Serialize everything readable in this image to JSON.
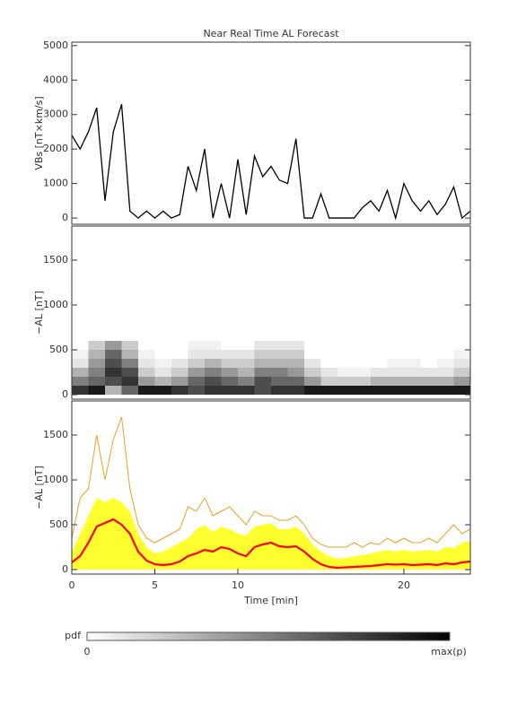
{
  "chart_data": [
    {
      "type": "line",
      "title": "Near Real Time AL Forecast",
      "ylabel": "VBs [nT×km/s]",
      "color": "#000000",
      "x": [
        0,
        0.5,
        1,
        1.5,
        2,
        2.5,
        3,
        3.5,
        4,
        4.5,
        5,
        5.5,
        6,
        6.5,
        7,
        7.5,
        8,
        8.5,
        9,
        9.5,
        10,
        10.5,
        11,
        11.5,
        12,
        12.5,
        13,
        13.5,
        14,
        14.5,
        15,
        15.5,
        16,
        16.5,
        17,
        17.5,
        18,
        18.5,
        19,
        19.5,
        20,
        20.5,
        21,
        21.5,
        22,
        22.5,
        23,
        23.5,
        24
      ],
      "values": [
        2400,
        2000,
        2500,
        3200,
        500,
        2500,
        3300,
        200,
        0,
        200,
        0,
        200,
        0,
        100,
        1500,
        800,
        2000,
        0,
        1000,
        0,
        1700,
        100,
        1800,
        1200,
        1500,
        1100,
        1000,
        2300,
        0,
        0,
        700,
        0,
        0,
        0,
        0,
        300,
        500,
        200,
        800,
        0,
        1000,
        500,
        200,
        500,
        100,
        400,
        900,
        0,
        200
      ],
      "xlim": [
        0,
        24
      ],
      "ylim": [
        -180,
        5100
      ],
      "yticks": [
        0,
        1000,
        2000,
        3000,
        4000,
        5000
      ]
    },
    {
      "type": "heatmap",
      "ylabel": "−AL [nT]",
      "xlim": [
        0,
        24
      ],
      "ylim": [
        -50,
        1880
      ],
      "yticks": [
        0,
        500,
        1000,
        1500
      ],
      "xbins": [
        0,
        1,
        2,
        3,
        4,
        5,
        6,
        7,
        8,
        9,
        10,
        11,
        12,
        13,
        14,
        15,
        16,
        17,
        18,
        19,
        20,
        21,
        22,
        23,
        24
      ],
      "ybins": [
        0,
        100,
        200,
        300,
        400,
        500,
        600
      ],
      "z": [
        [
          0.8,
          0.5,
          0.3,
          0.1,
          0.05,
          0
        ],
        [
          0.9,
          0.6,
          0.5,
          0.4,
          0.3,
          0.2
        ],
        [
          0.3,
          0.7,
          0.8,
          0.7,
          0.6,
          0.4
        ],
        [
          0.6,
          0.8,
          0.7,
          0.5,
          0.3,
          0.2
        ],
        [
          0.9,
          0.4,
          0.2,
          0.1,
          0.05,
          0
        ],
        [
          0.9,
          0.3,
          0.1,
          0.05,
          0,
          0
        ],
        [
          0.8,
          0.4,
          0.2,
          0.1,
          0,
          0
        ],
        [
          0.7,
          0.6,
          0.4,
          0.2,
          0.1,
          0.05
        ],
        [
          0.8,
          0.7,
          0.5,
          0.3,
          0.1,
          0.05
        ],
        [
          0.8,
          0.6,
          0.4,
          0.2,
          0.1,
          0
        ],
        [
          0.8,
          0.5,
          0.3,
          0.2,
          0.1,
          0
        ],
        [
          0.7,
          0.7,
          0.5,
          0.3,
          0.2,
          0.1
        ],
        [
          0.8,
          0.6,
          0.5,
          0.3,
          0.2,
          0.1
        ],
        [
          0.8,
          0.6,
          0.4,
          0.3,
          0.2,
          0.1
        ],
        [
          0.9,
          0.4,
          0.2,
          0.1,
          0,
          0
        ],
        [
          0.9,
          0.2,
          0.1,
          0,
          0,
          0
        ],
        [
          0.9,
          0.2,
          0.05,
          0,
          0,
          0
        ],
        [
          0.9,
          0.2,
          0.05,
          0,
          0,
          0
        ],
        [
          0.9,
          0.3,
          0.1,
          0,
          0,
          0
        ],
        [
          0.9,
          0.3,
          0.1,
          0.05,
          0,
          0
        ],
        [
          0.9,
          0.3,
          0.1,
          0.05,
          0,
          0
        ],
        [
          0.9,
          0.3,
          0.1,
          0,
          0,
          0
        ],
        [
          0.9,
          0.3,
          0.1,
          0.05,
          0,
          0
        ],
        [
          0.9,
          0.4,
          0.2,
          0.1,
          0.05,
          0
        ]
      ]
    },
    {
      "type": "band",
      "ylabel": "−AL [nT]",
      "xlabel": "Time [min]",
      "xlim": [
        0,
        24
      ],
      "ylim": [
        -50,
        1880
      ],
      "yticks": [
        0,
        500,
        1000,
        1500
      ],
      "xticks": [
        0,
        5,
        10,
        20
      ],
      "x": [
        0,
        0.5,
        1,
        1.5,
        2,
        2.5,
        3,
        3.5,
        4,
        4.5,
        5,
        5.5,
        6,
        6.5,
        7,
        7.5,
        8,
        8.5,
        9,
        9.5,
        10,
        10.5,
        11,
        11.5,
        12,
        12.5,
        13,
        13.5,
        14,
        14.5,
        15,
        15.5,
        16,
        16.5,
        17,
        17.5,
        18,
        18.5,
        19,
        19.5,
        20,
        20.5,
        21,
        21.5,
        22,
        22.5,
        23,
        23.5,
        24
      ],
      "series": [
        {
          "kind": "line",
          "color": "#f0a020",
          "values": [
            350,
            800,
            900,
            1500,
            1000,
            1450,
            1700,
            900,
            500,
            350,
            300,
            350,
            400,
            450,
            700,
            650,
            800,
            600,
            650,
            700,
            600,
            500,
            650,
            600,
            600,
            550,
            550,
            600,
            500,
            350,
            280,
            250,
            250,
            250,
            300,
            250,
            300,
            280,
            350,
            300,
            350,
            300,
            300,
            350,
            300,
            400,
            500,
            400,
            450
          ]
        },
        {
          "kind": "area",
          "color": "#ffff30",
          "values": [
            200,
            400,
            600,
            800,
            750,
            800,
            750,
            650,
            400,
            250,
            180,
            200,
            250,
            300,
            350,
            450,
            500,
            420,
            480,
            450,
            400,
            380,
            480,
            500,
            520,
            450,
            450,
            480,
            400,
            280,
            200,
            150,
            120,
            130,
            150,
            160,
            180,
            200,
            220,
            200,
            220,
            200,
            210,
            220,
            200,
            250,
            240,
            300,
            320
          ]
        },
        {
          "kind": "line",
          "color": "#ff0000",
          "values": [
            80,
            150,
            300,
            480,
            520,
            560,
            500,
            400,
            200,
            100,
            60,
            50,
            60,
            90,
            150,
            180,
            220,
            200,
            250,
            230,
            180,
            150,
            250,
            280,
            300,
            260,
            250,
            260,
            200,
            120,
            60,
            30,
            20,
            25,
            30,
            35,
            40,
            50,
            60,
            55,
            60,
            50,
            55,
            60,
            50,
            70,
            60,
            80,
            90
          ]
        }
      ]
    }
  ],
  "colorbar": {
    "label": "pdf",
    "min_label": "0",
    "max_label": "max(p)"
  }
}
